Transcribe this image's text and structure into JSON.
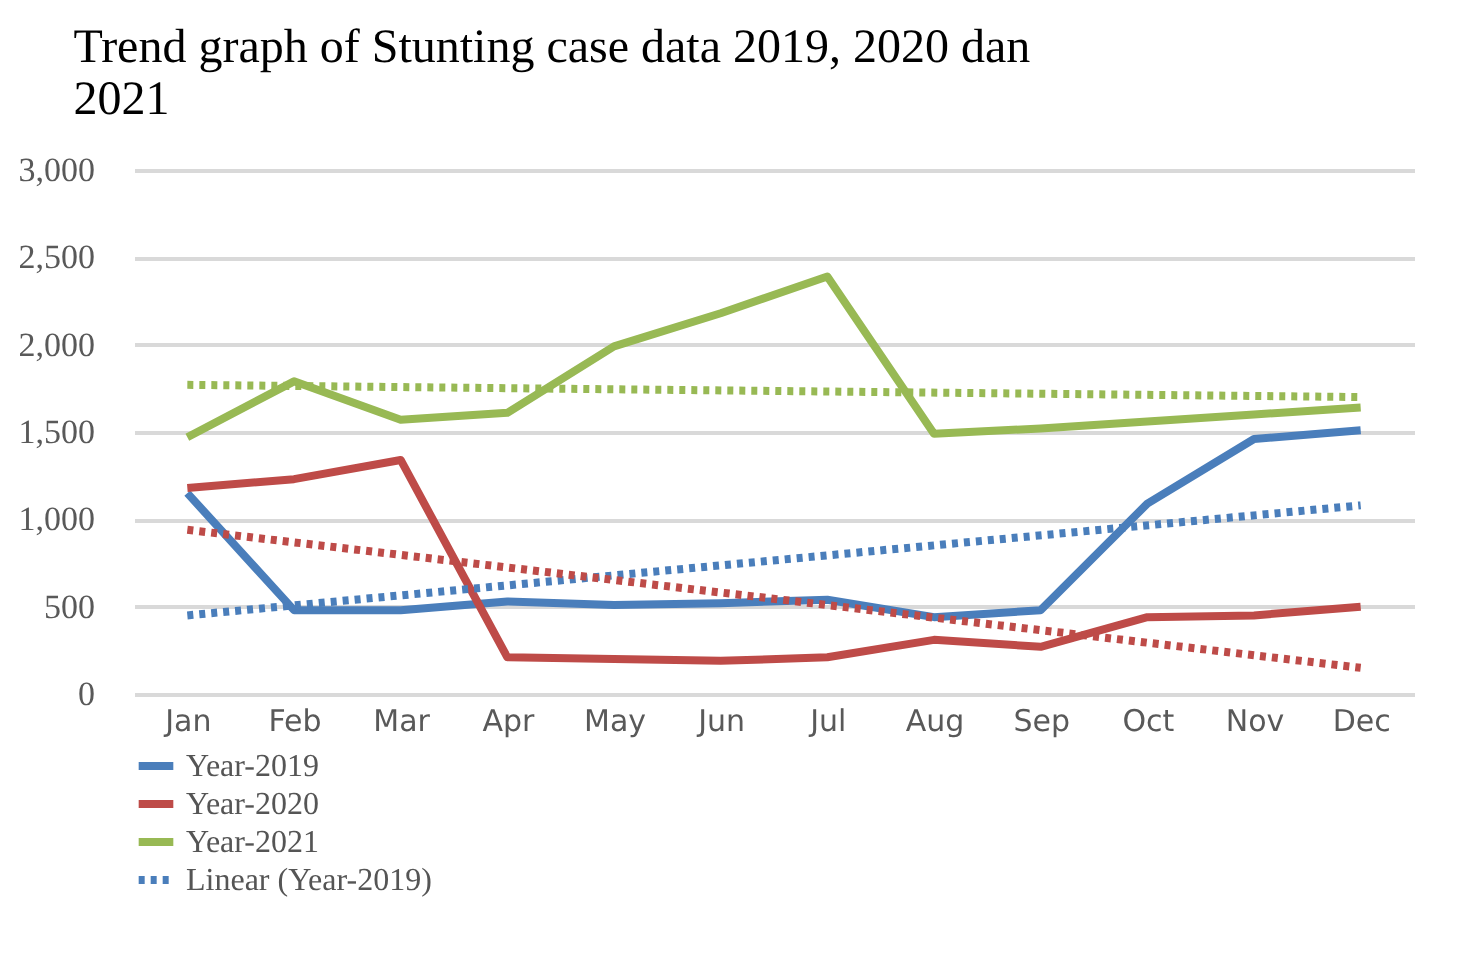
{
  "chart_data": {
    "type": "line",
    "title": "Trend graph of Stunting case data 2019, 2020 dan 2021",
    "categories": [
      "Jan",
      "Feb",
      "Mar",
      "Apr",
      "May",
      "Jun",
      "Jul",
      "Aug",
      "Sep",
      "Oct",
      "Nov",
      "Dec"
    ],
    "series": [
      {
        "name": "Year-2019",
        "color": "#4a7ebb",
        "line_style": "solid",
        "values": [
          1150,
          480,
          480,
          530,
          510,
          520,
          540,
          440,
          480,
          1090,
          1460,
          1510
        ]
      },
      {
        "name": "Year-2020",
        "color": "#be4b48",
        "line_style": "solid",
        "values": [
          1180,
          1230,
          1340,
          210,
          200,
          190,
          210,
          310,
          270,
          440,
          450,
          500
        ]
      },
      {
        "name": "Year-2021",
        "color": "#98b954",
        "line_style": "solid",
        "values": [
          1470,
          1790,
          1570,
          1610,
          1990,
          2180,
          2390,
          1490,
          1520,
          1560,
          1600,
          1640
        ]
      },
      {
        "name": "Linear (Year-2019)",
        "color": "#4a7ebb",
        "line_style": "dotted",
        "x": [
          "Jan",
          "Dec"
        ],
        "values": [
          450,
          1080
        ]
      },
      {
        "color": "#be4b48",
        "line_style": "dotted",
        "x": [
          "Jan",
          "Dec"
        ],
        "values": [
          940,
          150
        ]
      },
      {
        "color": "#98b954",
        "line_style": "dotted",
        "x": [
          "Jan",
          "Dec"
        ],
        "values": [
          1770,
          1700
        ]
      }
    ],
    "ylim": [
      0,
      3000
    ],
    "yticks": [
      0,
      {
        "value": 500,
        "label": "500"
      },
      {
        "value": 1000,
        "label": "1,000"
      },
      {
        "value": 1500,
        "label": "1,500"
      },
      {
        "value": 2000,
        "label": "2,000"
      },
      {
        "value": 2500,
        "label": "2,500"
      },
      {
        "value": 3000,
        "label": "3,000"
      }
    ],
    "grid": "y",
    "legend": "bottom left"
  }
}
